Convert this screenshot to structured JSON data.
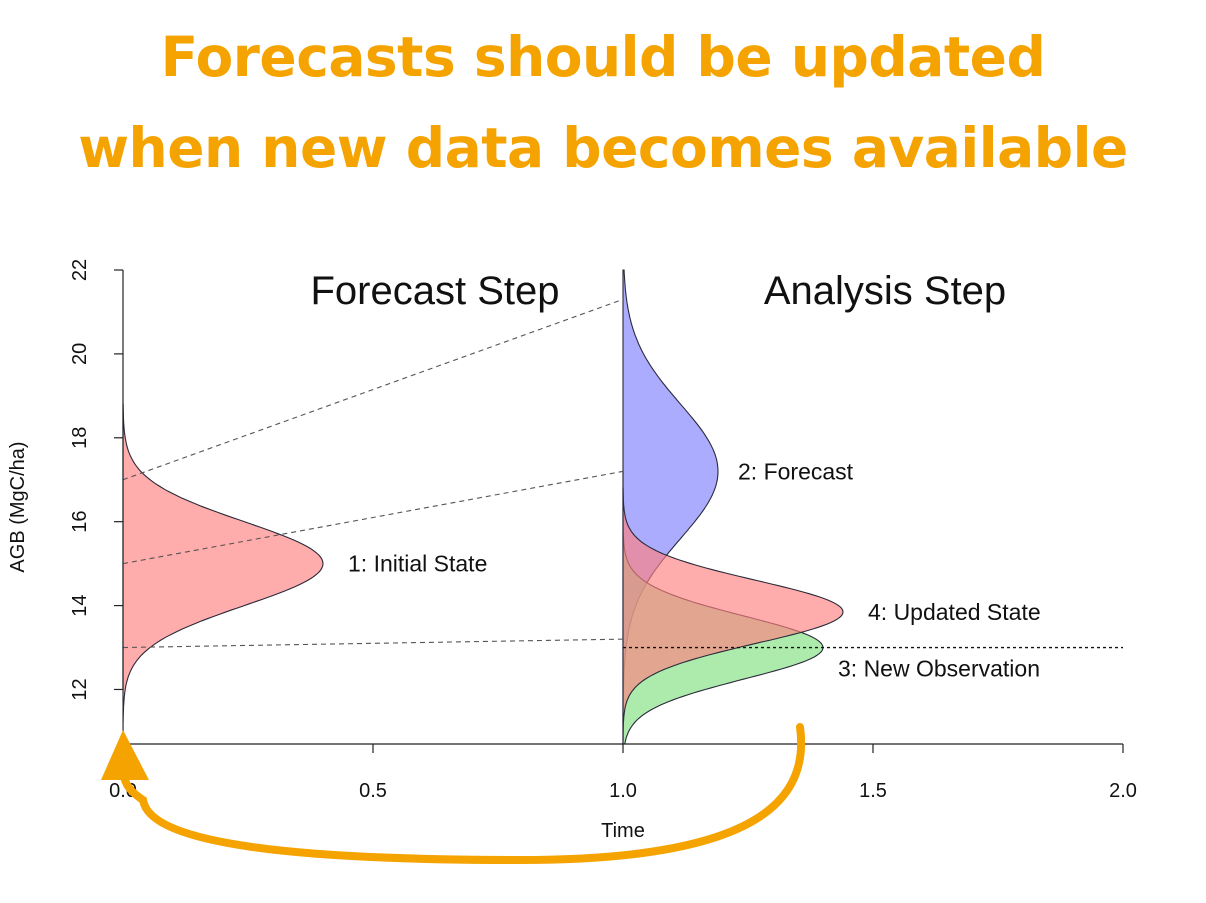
{
  "headline": {
    "line1": "Forecasts should be updated",
    "line2": "when new data becomes available",
    "color": "#f5a300"
  },
  "chart_data": {
    "type": "area",
    "xlabel": "Time",
    "ylabel": "AGB (MgC/ha)",
    "xlim": [
      0,
      2
    ],
    "ylim": [
      10.7,
      22
    ],
    "xticks": [
      "0.0",
      "0.5",
      "1.0",
      "1.5",
      "2.0"
    ],
    "yticks": [
      "12",
      "14",
      "16",
      "18",
      "20",
      "22"
    ],
    "panel_titles": [
      {
        "text": "Forecast Step",
        "x": 0.6,
        "y": 21.5
      },
      {
        "text": "Analysis Step",
        "x": 1.5,
        "y": 21.5
      }
    ],
    "distributions": [
      {
        "label": "1: Initial State",
        "x0": 0.0,
        "mean": 15.0,
        "sd": 1.0,
        "peak_width": 0.4,
        "color": "#ff7f7f",
        "ymin": 10.7,
        "ymax": 18.8
      },
      {
        "label": "2: Forecast",
        "x0": 1.0,
        "mean": 17.2,
        "sd": 1.6,
        "peak_width": 0.19,
        "color": "#7f7fff",
        "ymin": 10.7,
        "ymax": 22.0
      },
      {
        "label": "3: New Observation",
        "x0": 1.0,
        "mean": 13.0,
        "sd": 0.75,
        "peak_width": 0.4,
        "color": "#7fe07f",
        "ymin": 10.7,
        "ymax": 17.2
      },
      {
        "label": "4: Updated State",
        "x0": 1.0,
        "mean": 13.85,
        "sd": 0.75,
        "peak_width": 0.44,
        "color": "#ff7f7f",
        "ymin": 10.7,
        "ymax": 16.8
      }
    ],
    "dashed_lines": [
      {
        "from": [
          0.0,
          17.0
        ],
        "to": [
          1.0,
          21.3
        ]
      },
      {
        "from": [
          0.0,
          15.0
        ],
        "to": [
          1.0,
          17.2
        ]
      },
      {
        "from": [
          0.0,
          13.0
        ],
        "to": [
          1.0,
          13.2
        ]
      }
    ],
    "observation_line": {
      "y": 13.0,
      "x_from": 1.0,
      "x_to": 2.0
    },
    "feedback_arrow": {
      "color": "#f5a300",
      "from_x": 1.35,
      "to_x": 0.0
    }
  }
}
